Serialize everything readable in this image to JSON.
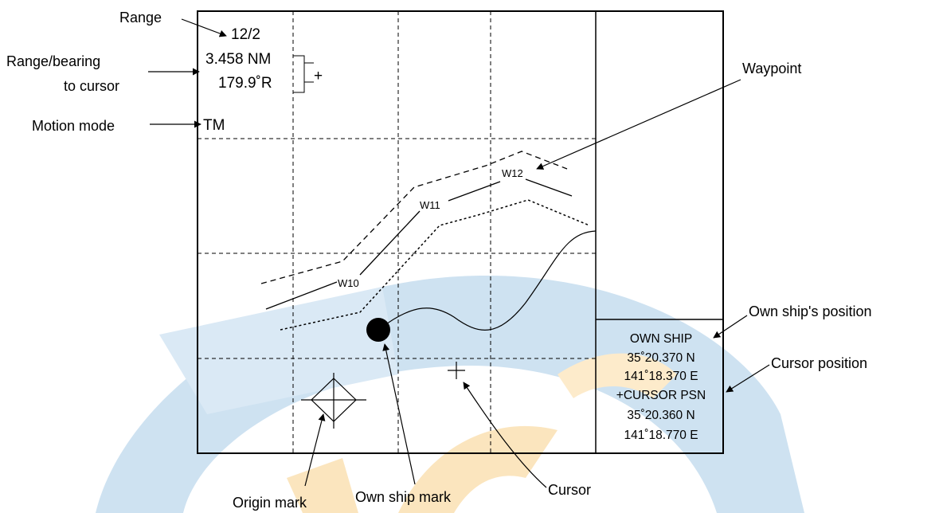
{
  "screen": {
    "range": "12/2",
    "cursor_range": "3.458 NM",
    "cursor_bearing": "179.9˚R",
    "motion_mode": "TM"
  },
  "waypoints": [
    "W10",
    "W11",
    "W12"
  ],
  "info_box": {
    "own_ship_title": "OWN SHIP",
    "own_ship_lat": "35˚20.370 N",
    "own_ship_lon": "141˚18.370 E",
    "cursor_title": "+CURSOR PSN",
    "cursor_lat": "35˚20.360 N",
    "cursor_lon": "141˚18.770 E"
  },
  "callouts": {
    "range": "Range",
    "range_bearing_line1": "Range/bearing",
    "range_bearing_line2": "to cursor",
    "motion_mode": "Motion mode",
    "waypoint": "Waypoint",
    "own_ship_position": "Own ship's position",
    "cursor_position": "Cursor position",
    "origin_mark": "Origin mark",
    "own_ship_mark": "Own ship mark",
    "cursor": "Cursor"
  },
  "colors": {
    "watermark_blue": "#c9dff0",
    "watermark_orange": "#fbe3b8"
  }
}
